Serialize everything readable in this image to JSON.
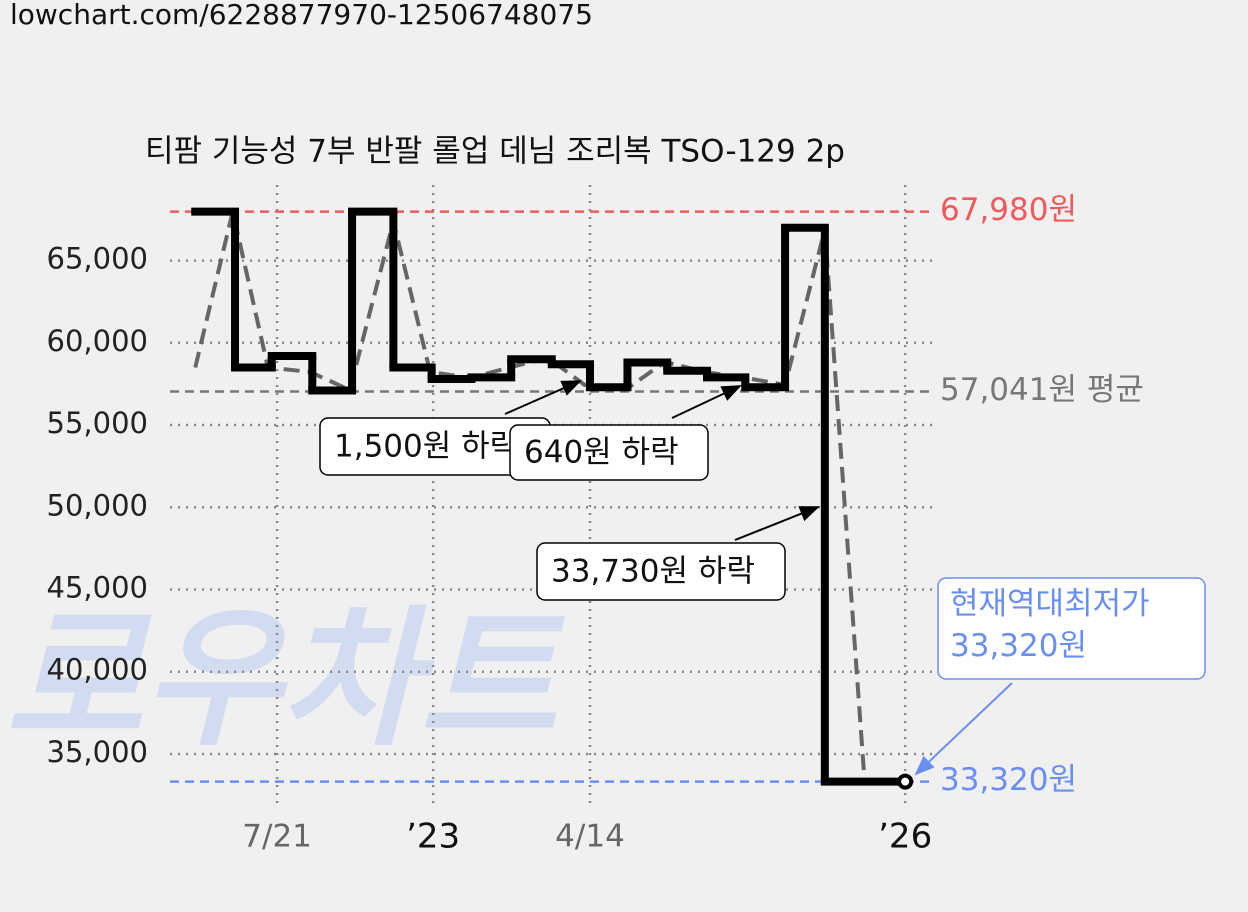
{
  "url": "lowchart.com/6228877970-12506748075",
  "chart_data": {
    "type": "line",
    "title": "티팜 기능성 7부 반팔 롤업 데님 조리복 TSO-129 2p",
    "watermark": "로우차트",
    "xlim": [
      0,
      100
    ],
    "ylim": [
      32200,
      69900
    ],
    "xticks": [
      {
        "value": 14,
        "label": "7/21"
      },
      {
        "value": 34.4,
        "label": "’23"
      },
      {
        "value": 54.9,
        "label": "4/14"
      },
      {
        "value": 96.1,
        "label": "’26"
      }
    ],
    "yticks": [
      {
        "value": 35000,
        "label": "35,000"
      },
      {
        "value": 40000,
        "label": "40,000"
      },
      {
        "value": 45000,
        "label": "45,000"
      },
      {
        "value": 50000,
        "label": "50,000"
      },
      {
        "value": 55000,
        "label": "55,000"
      },
      {
        "value": 60000,
        "label": "60,000"
      },
      {
        "value": 65000,
        "label": "65,000"
      }
    ],
    "grid": true,
    "series": [
      {
        "name": "가격",
        "color": "#000000",
        "step": true,
        "x": [
          3.3,
          8.5,
          13.3,
          18.6,
          23.8,
          29.2,
          34.2,
          39.4,
          44.6,
          49.9,
          54.9,
          59.8,
          65.0,
          70.2,
          75.2,
          80.4,
          85.6,
          96.1
        ],
        "values": [
          67980,
          58500,
          59200,
          57100,
          67980,
          58500,
          57800,
          57900,
          59000,
          58700,
          57300,
          58800,
          58300,
          57900,
          57300,
          67000,
          33320,
          33320
        ]
      },
      {
        "name": "추세",
        "color": "#666666",
        "dashed": true,
        "x": [
          3.3,
          8.2,
          12.8,
          18.3,
          23.5,
          29.2,
          34.0,
          39.2,
          44.4,
          49.4,
          54.2,
          59.5,
          64.7,
          69.9,
          75.2,
          80.4,
          85.6,
          90.8,
          96.1
        ],
        "values": [
          58500,
          67980,
          58500,
          58230,
          57130,
          67380,
          58230,
          57870,
          58500,
          59090,
          57440,
          57130,
          58840,
          58230,
          57870,
          57440,
          66890,
          33320,
          33320
        ]
      }
    ],
    "reference_lines": [
      {
        "value": 67980,
        "label": "67,980원",
        "color": "#f05a5a"
      },
      {
        "value": 57041,
        "label": "57,041원 평균",
        "color": "#777777"
      },
      {
        "value": 33320,
        "label": "33,320원",
        "color": "#6a8ff0"
      }
    ],
    "annotations": [
      "1,500원 하락",
      "640원 하락",
      "33,730원 하락",
      "현재역대최저가\n33,320원"
    ]
  }
}
